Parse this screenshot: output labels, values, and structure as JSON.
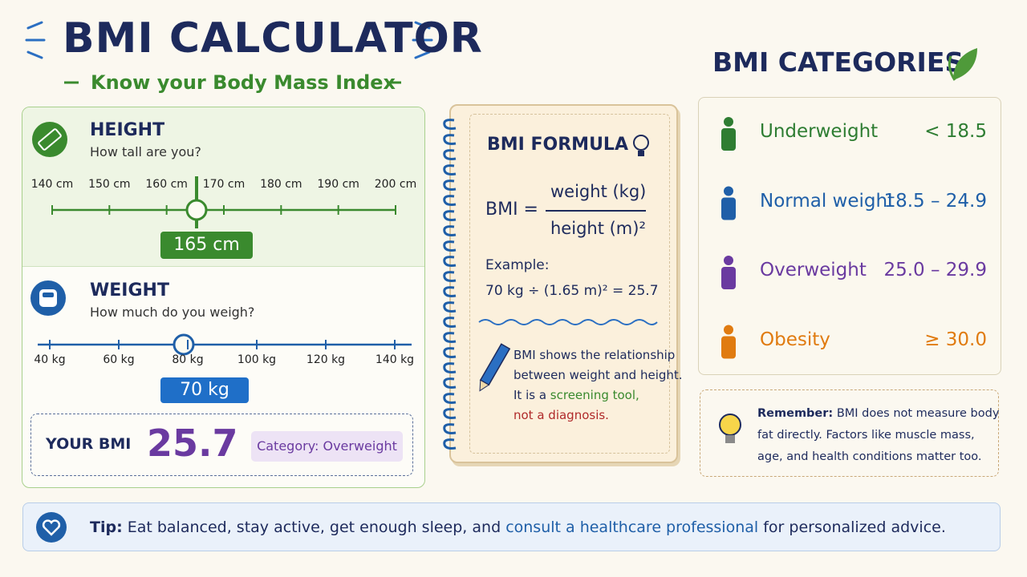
{
  "header": {
    "title": "BMI CALCULATOR",
    "subtitle": "Know your Body Mass Index"
  },
  "height": {
    "title": "HEIGHT",
    "question": "How tall are you?",
    "ticks": [
      "140 cm",
      "150 cm",
      "160 cm",
      "170 cm",
      "180 cm",
      "190 cm",
      "200 cm"
    ],
    "value": "165 cm"
  },
  "weight": {
    "title": "WEIGHT",
    "question": "How much do you weigh?",
    "ticks": [
      "40 kg",
      "60 kg",
      "80 kg",
      "100 kg",
      "120 kg",
      "140 kg"
    ],
    "value": "70 kg"
  },
  "result": {
    "label": "YOUR BMI",
    "value": "25.7",
    "category": "Category: Overweight"
  },
  "formula": {
    "title": "BMI FORMULA",
    "lhs": "BMI =",
    "numerator": "weight (kg)",
    "denominator": "height (m)²",
    "example_label": "Example:",
    "example": "70 kg ÷ (1.65 m)² = 25.7",
    "note": {
      "line1": "BMI shows the relationship",
      "line2": "between weight and height.",
      "line3": "It is a",
      "highlight": "screening tool,",
      "warning": "not a diagnosis."
    }
  },
  "categories": {
    "title": "BMI CATEGORIES",
    "items": [
      {
        "name": "Underweight",
        "range": "< 18.5",
        "color": "#2e7d32"
      },
      {
        "name": "Normal weight",
        "range": "18.5 – 24.9",
        "color": "#1f5fa8"
      },
      {
        "name": "Overweight",
        "range": "25.0 – 29.9",
        "color": "#6a3aa0"
      },
      {
        "name": "Obesity",
        "range": "≥ 30.0",
        "color": "#e07b10"
      }
    ]
  },
  "remember": {
    "label": "Remember:",
    "line1": "BMI does not measure body",
    "line2": "fat directly. Factors like muscle mass,",
    "line3": "age, and health conditions matter too."
  },
  "tip": {
    "label": "Tip:",
    "text": "Eat balanced, stay active, get enough sleep, and",
    "link": "consult a healthcare professional",
    "end": "for personalized advice."
  }
}
